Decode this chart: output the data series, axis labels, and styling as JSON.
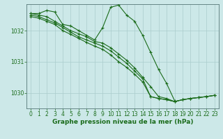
{
  "background_color": "#cce8e8",
  "grid_color": "#aacccc",
  "line_color": "#1a6b1a",
  "marker_color": "#1a6b1a",
  "xlabel": "Graphe pression niveau de la mer (hPa)",
  "xlabel_fontsize": 6.5,
  "tick_fontsize": 5.5,
  "xlim": [
    -0.5,
    23.5
  ],
  "ylim": [
    1029.5,
    1032.85
  ],
  "yticks": [
    1030,
    1031,
    1032
  ],
  "xticks": [
    0,
    1,
    2,
    3,
    4,
    5,
    6,
    7,
    8,
    9,
    10,
    11,
    12,
    13,
    14,
    15,
    16,
    17,
    18,
    19,
    20,
    21,
    22,
    23
  ],
  "series": [
    [
      1032.55,
      1032.55,
      1032.65,
      1032.6,
      1032.2,
      1032.15,
      1032.0,
      1031.85,
      1031.7,
      1032.1,
      1032.75,
      1032.82,
      1032.5,
      1032.3,
      1031.85,
      1031.3,
      1030.75,
      1030.3,
      1029.75,
      null,
      null,
      null,
      null,
      null
    ],
    [
      1032.55,
      1032.5,
      1032.45,
      1032.3,
      1032.15,
      1032.0,
      1031.9,
      1031.8,
      1031.65,
      1031.6,
      1031.45,
      1031.25,
      1031.05,
      1030.8,
      1030.5,
      1030.2,
      1029.88,
      1029.82,
      1029.72,
      1029.78,
      1029.82,
      1029.85,
      1029.88,
      1029.92
    ],
    [
      1032.5,
      1032.45,
      1032.35,
      1032.25,
      1032.1,
      1031.95,
      1031.8,
      1031.7,
      1031.6,
      1031.5,
      1031.35,
      1031.15,
      1030.95,
      1030.7,
      1030.45,
      1029.88,
      1029.82,
      1029.78,
      1029.72,
      1029.78,
      1029.82,
      1029.85,
      1029.88,
      1029.92
    ],
    [
      1032.45,
      1032.4,
      1032.3,
      1032.2,
      1032.0,
      1031.88,
      1031.75,
      1031.62,
      1031.5,
      1031.4,
      1031.22,
      1031.0,
      1030.82,
      1030.6,
      1030.35,
      1029.88,
      1029.82,
      1029.78,
      1029.72,
      1029.78,
      1029.82,
      1029.85,
      1029.88,
      1029.92
    ]
  ]
}
